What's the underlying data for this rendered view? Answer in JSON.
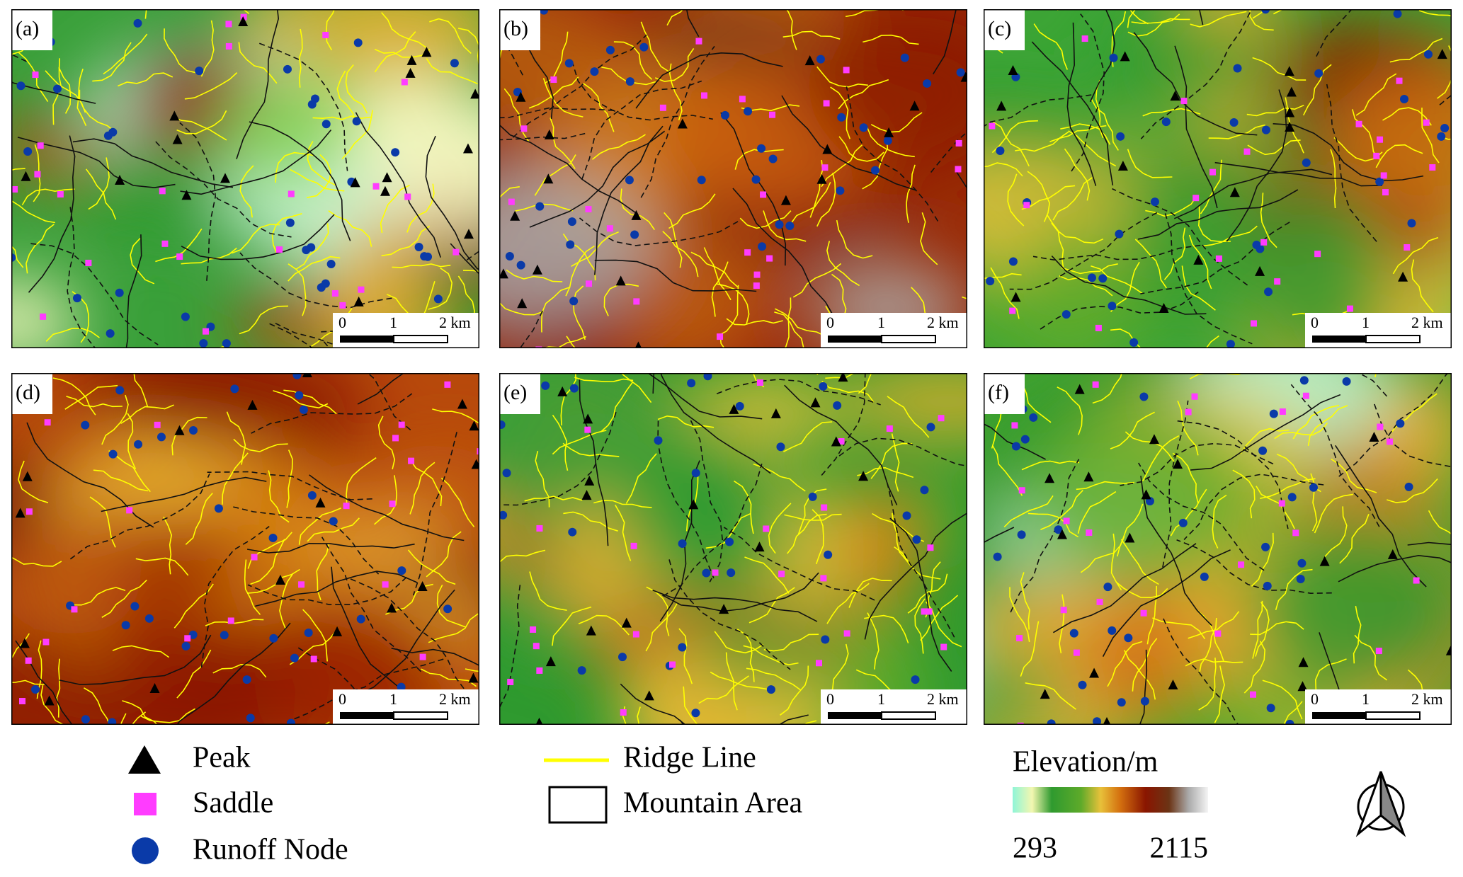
{
  "panels": [
    {
      "label": "(a)"
    },
    {
      "label": "(b)"
    },
    {
      "label": "(c)"
    },
    {
      "label": "(d)"
    },
    {
      "label": "(e)"
    },
    {
      "label": "(f)"
    }
  ],
  "scale_bar": {
    "labels": [
      "0",
      "1",
      "2 km"
    ]
  },
  "legend": {
    "items": [
      "Peak",
      "Saddle",
      "Runoff Node",
      "Ridge Line",
      "Mountain Area"
    ]
  },
  "colorbar": {
    "title": "Elevation/m",
    "min": 293,
    "max": 2115
  }
}
